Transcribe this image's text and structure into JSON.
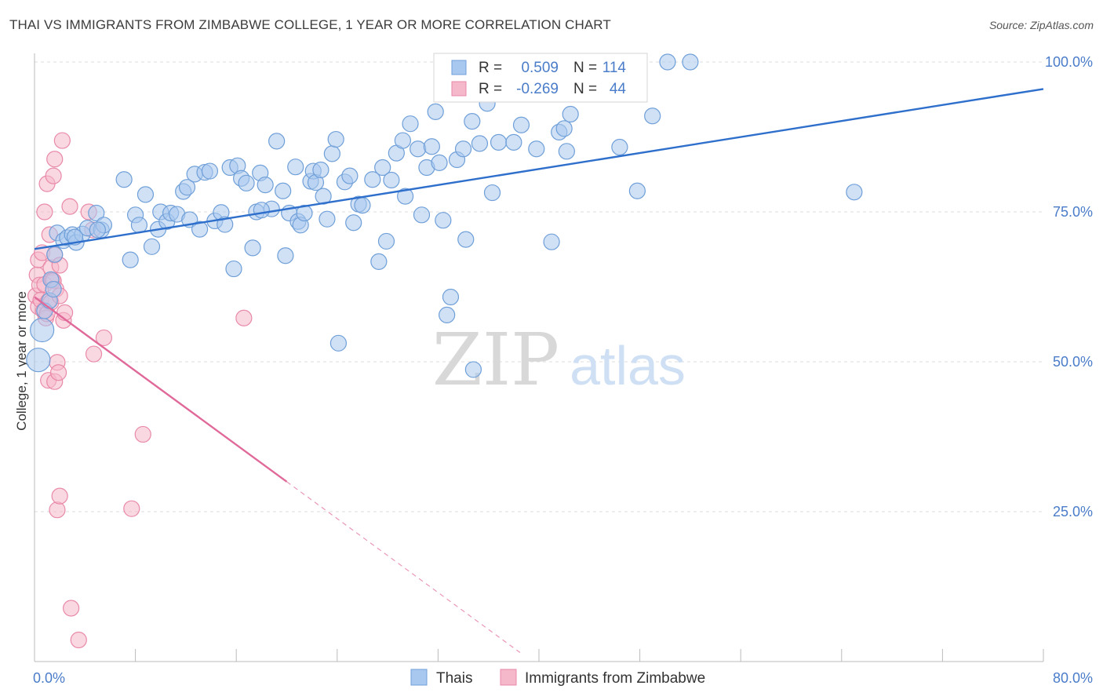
{
  "title": "THAI VS IMMIGRANTS FROM ZIMBABWE COLLEGE, 1 YEAR OR MORE CORRELATION CHART",
  "source": "Source: ZipAtlas.com",
  "watermark": {
    "zip": "ZIP",
    "atlas": "atlas"
  },
  "colors": {
    "thai_fill": "#a9c8ef",
    "thai_stroke": "#6f9fd8",
    "thai_line": "#2f6fcc",
    "zim_fill": "#f5b8cb",
    "zim_stroke": "#e889a8",
    "zim_line": "#e0699a",
    "tick_text": "#4a7cc9",
    "grid": "#dddddd"
  },
  "legend": {
    "rows": [
      {
        "r_label": "R = ",
        "r_value": "0.509",
        "n_label": "N = ",
        "n_value": "114"
      },
      {
        "r_label": "R = ",
        "r_value": "-0.269",
        "n_label": "N = ",
        "n_value": "44"
      }
    ]
  },
  "chart_data": {
    "type": "scatter",
    "title": "THAI VS IMMIGRANTS FROM ZIMBABWE COLLEGE, 1 YEAR OR MORE CORRELATION CHART",
    "xlabel": "",
    "ylabel": "College, 1 year or more",
    "xlim": [
      0,
      80
    ],
    "ylim": [
      0,
      100
    ],
    "x_tick_labels": [
      "0.0%",
      "80.0%"
    ],
    "y_tick_labels": [
      "100.0%",
      "75.0%",
      "50.0%",
      "25.0%"
    ],
    "y_ticks": [
      100,
      75,
      50,
      25
    ],
    "legend_position": "bottom",
    "series": [
      {
        "name": "Thais",
        "R": 0.509,
        "N": 114,
        "trend": {
          "x": [
            0,
            80
          ],
          "y": [
            68.8,
            95.5
          ]
        },
        "points": [
          [
            0.3,
            50.3
          ],
          [
            0.6,
            55.3
          ],
          [
            0.8,
            58.5
          ],
          [
            1.2,
            60.2
          ],
          [
            1.3,
            63.7
          ],
          [
            1.5,
            62.1
          ],
          [
            1.6,
            67.9
          ],
          [
            1.8,
            71.5
          ],
          [
            2.3,
            70.2
          ],
          [
            2.6,
            70.7
          ],
          [
            3.0,
            71.2
          ],
          [
            3.3,
            69.9
          ],
          [
            3.8,
            71.3
          ],
          [
            4.2,
            72.3
          ],
          [
            4.9,
            74.8
          ],
          [
            5.3,
            72.0
          ],
          [
            5.5,
            72.8
          ],
          [
            7.1,
            80.4
          ],
          [
            7.6,
            67.0
          ],
          [
            8.0,
            74.5
          ],
          [
            8.3,
            72.8
          ],
          [
            8.8,
            77.9
          ],
          [
            9.3,
            69.2
          ],
          [
            9.8,
            72.1
          ],
          [
            10.0,
            75.0
          ],
          [
            10.5,
            73.4
          ],
          [
            10.8,
            74.8
          ],
          [
            11.3,
            74.6
          ],
          [
            11.8,
            78.4
          ],
          [
            12.1,
            79.1
          ],
          [
            12.3,
            73.7
          ],
          [
            12.7,
            81.3
          ],
          [
            13.1,
            72.1
          ],
          [
            13.5,
            81.6
          ],
          [
            13.9,
            81.8
          ],
          [
            14.3,
            73.5
          ],
          [
            14.8,
            74.9
          ],
          [
            15.1,
            72.9
          ],
          [
            15.5,
            82.4
          ],
          [
            15.8,
            65.5
          ],
          [
            16.1,
            82.7
          ],
          [
            16.4,
            80.6
          ],
          [
            16.8,
            79.8
          ],
          [
            17.3,
            69.0
          ],
          [
            17.6,
            75.0
          ],
          [
            17.9,
            81.5
          ],
          [
            18.3,
            79.5
          ],
          [
            18.8,
            75.5
          ],
          [
            19.2,
            86.8
          ],
          [
            19.7,
            78.5
          ],
          [
            19.9,
            67.7
          ],
          [
            20.2,
            74.8
          ],
          [
            20.7,
            82.5
          ],
          [
            20.9,
            73.4
          ],
          [
            21.1,
            72.8
          ],
          [
            21.4,
            74.8
          ],
          [
            21.9,
            80.1
          ],
          [
            22.1,
            81.8
          ],
          [
            22.3,
            79.9
          ],
          [
            22.7,
            82.0
          ],
          [
            22.9,
            77.6
          ],
          [
            23.2,
            73.8
          ],
          [
            23.6,
            84.7
          ],
          [
            23.9,
            87.1
          ],
          [
            24.1,
            53.1
          ],
          [
            24.6,
            80.0
          ],
          [
            25.0,
            81.0
          ],
          [
            25.3,
            73.2
          ],
          [
            25.7,
            76.3
          ],
          [
            26.0,
            76.1
          ],
          [
            26.8,
            80.4
          ],
          [
            27.3,
            66.7
          ],
          [
            27.6,
            82.4
          ],
          [
            27.9,
            70.1
          ],
          [
            28.3,
            80.3
          ],
          [
            28.7,
            84.8
          ],
          [
            29.2,
            86.9
          ],
          [
            29.4,
            77.6
          ],
          [
            29.8,
            89.7
          ],
          [
            30.4,
            85.5
          ],
          [
            30.7,
            74.5
          ],
          [
            31.1,
            82.4
          ],
          [
            31.5,
            85.9
          ],
          [
            31.8,
            91.7
          ],
          [
            32.1,
            83.2
          ],
          [
            32.4,
            73.6
          ],
          [
            32.7,
            57.8
          ],
          [
            33.0,
            60.8
          ],
          [
            33.5,
            83.7
          ],
          [
            34.0,
            85.5
          ],
          [
            34.2,
            70.4
          ],
          [
            34.7,
            90.1
          ],
          [
            34.8,
            48.7
          ],
          [
            35.3,
            86.4
          ],
          [
            35.9,
            93.1
          ],
          [
            36.3,
            78.2
          ],
          [
            36.8,
            86.6
          ],
          [
            38.0,
            86.6
          ],
          [
            38.6,
            89.5
          ],
          [
            39.8,
            85.5
          ],
          [
            41.0,
            70.0
          ],
          [
            41.6,
            88.3
          ],
          [
            42.0,
            88.9
          ],
          [
            42.2,
            85.1
          ],
          [
            42.5,
            91.3
          ],
          [
            46.4,
            85.8
          ],
          [
            47.8,
            78.5
          ],
          [
            49.0,
            91.0
          ],
          [
            50.2,
            100.0
          ],
          [
            52.0,
            100.0
          ],
          [
            65.0,
            78.3
          ],
          [
            3.2,
            70.8
          ],
          [
            5.0,
            72.0
          ],
          [
            18.0,
            75.3
          ]
        ]
      },
      {
        "name": "Immigrants from Zimbabwe",
        "R": -0.269,
        "N": 44,
        "trend": {
          "x": [
            0,
            20
          ],
          "y": [
            60.8,
            30.0
          ]
        },
        "trend_extension": {
          "x": [
            20,
            38.5
          ],
          "y": [
            30.0,
            1.5
          ]
        },
        "points": [
          [
            0.1,
            61.0
          ],
          [
            0.2,
            64.5
          ],
          [
            0.3,
            67.0
          ],
          [
            0.3,
            59.2
          ],
          [
            0.4,
            62.8
          ],
          [
            0.5,
            60.3
          ],
          [
            0.6,
            68.2
          ],
          [
            0.7,
            58.5
          ],
          [
            0.8,
            62.9
          ],
          [
            0.8,
            75.0
          ],
          [
            0.9,
            57.3
          ],
          [
            1.0,
            79.7
          ],
          [
            1.1,
            60.1
          ],
          [
            1.1,
            46.9
          ],
          [
            1.2,
            71.2
          ],
          [
            1.3,
            59.9
          ],
          [
            1.3,
            65.7
          ],
          [
            1.4,
            63.6
          ],
          [
            1.5,
            81.0
          ],
          [
            1.5,
            63.5
          ],
          [
            1.6,
            83.8
          ],
          [
            1.6,
            67.8
          ],
          [
            1.6,
            46.7
          ],
          [
            1.7,
            62.1
          ],
          [
            1.8,
            49.9
          ],
          [
            1.8,
            25.3
          ],
          [
            1.9,
            48.2
          ],
          [
            2.0,
            66.1
          ],
          [
            2.0,
            27.6
          ],
          [
            2.2,
            86.9
          ],
          [
            2.3,
            56.9
          ],
          [
            2.4,
            58.2
          ],
          [
            2.8,
            75.9
          ],
          [
            2.9,
            8.9
          ],
          [
            3.5,
            3.6
          ],
          [
            4.3,
            75.0
          ],
          [
            4.6,
            72.0
          ],
          [
            4.7,
            51.3
          ],
          [
            5.5,
            54.0
          ],
          [
            7.7,
            25.5
          ],
          [
            8.6,
            37.9
          ],
          [
            16.6,
            57.3
          ],
          [
            2.0,
            61.0
          ],
          [
            1.0,
            58.0
          ]
        ]
      }
    ]
  }
}
